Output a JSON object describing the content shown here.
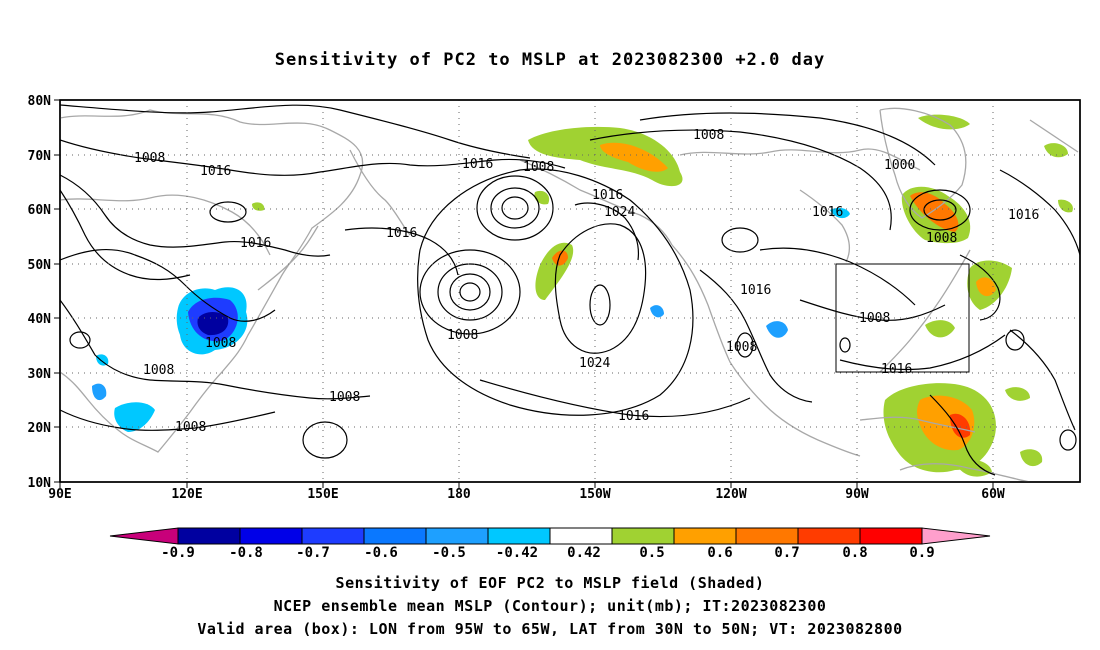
{
  "title": "Sensitivity of PC2 to MSLP at 2023082300 +2.0 day",
  "x_ticks": [
    "90E",
    "120E",
    "150E",
    "180",
    "150W",
    "120W",
    "90W",
    "60W"
  ],
  "y_ticks": [
    "80N",
    "70N",
    "60N",
    "50N",
    "40N",
    "30N",
    "20N",
    "10N"
  ],
  "contour_labels": [
    "1008",
    "1016",
    "1016",
    "1016",
    "1016",
    "1008",
    "1016",
    "1024",
    "1008",
    "1024",
    "1008",
    "1016",
    "1008",
    "1000",
    "1008",
    "1016",
    "1016",
    "1008",
    "1016",
    "1008",
    "1016",
    "1008",
    "1008",
    "1008"
  ],
  "colorbar": {
    "labels": [
      "-0.9",
      "-0.8",
      "-0.7",
      "-0.6",
      "-0.5",
      "-0.42",
      "0.42",
      "0.5",
      "0.6",
      "0.7",
      "0.8",
      "0.9"
    ],
    "colors": [
      "#0000a0",
      "#0000e8",
      "#1e3cff",
      "#0a78ff",
      "#1ea0ff",
      "#00c8ff",
      "#ffffff",
      "#a0d232",
      "#ffa000",
      "#ff7800",
      "#ff3c00",
      "#ff0000"
    ],
    "low_color": "#c8007a",
    "high_color": "#ff9fcc"
  },
  "captions": [
    "Sensitivity of EOF PC2 to MSLP field (Shaded)",
    "NCEP ensemble mean MSLP (Contour); unit(mb); IT:2023082300",
    "Valid area (box): LON from 95W to 65W, LAT from 30N to 50N; VT: 2023082800"
  ]
}
